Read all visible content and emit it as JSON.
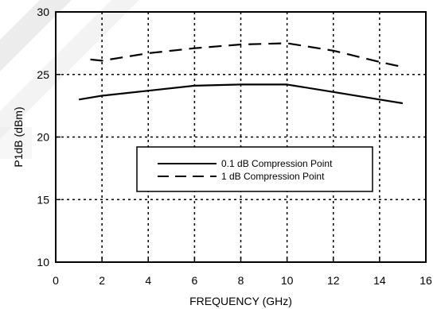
{
  "chart_data": {
    "type": "line",
    "xlabel": "FREQUENCY (GHz)",
    "ylabel": "P1dB (dBm)",
    "xlim": [
      0,
      16
    ],
    "ylim": [
      10,
      30
    ],
    "xticks": [
      0,
      2,
      4,
      6,
      8,
      10,
      12,
      14,
      16
    ],
    "yticks": [
      10,
      15,
      20,
      25,
      30
    ],
    "x_tick_labels": [
      "0",
      "2",
      "4",
      "6",
      "8",
      "10",
      "12",
      "14",
      "16"
    ],
    "y_tick_labels": [
      "10",
      "15",
      "20",
      "25",
      "30"
    ],
    "grid": true,
    "legend_position": "center-right",
    "series": [
      {
        "name": "0.1 dB Compression Point",
        "line_style": "solid",
        "color": "#000000",
        "x": [
          1,
          2,
          4,
          6,
          8,
          10,
          12,
          14,
          15
        ],
        "y": [
          23.0,
          23.3,
          23.7,
          24.1,
          24.2,
          24.2,
          23.6,
          23.0,
          22.7
        ]
      },
      {
        "name": "1 dB Compression Point",
        "line_style": "dashed",
        "color": "#000000",
        "x": [
          1.5,
          2,
          4,
          6,
          8,
          10,
          12,
          14,
          15
        ],
        "y": [
          26.2,
          26.1,
          26.7,
          27.1,
          27.4,
          27.5,
          26.9,
          26.0,
          25.6
        ]
      }
    ]
  },
  "colors": {
    "background": "#ffffff",
    "axis": "#000000",
    "grid": "#000000",
    "watermark": "#d9d9d9"
  }
}
